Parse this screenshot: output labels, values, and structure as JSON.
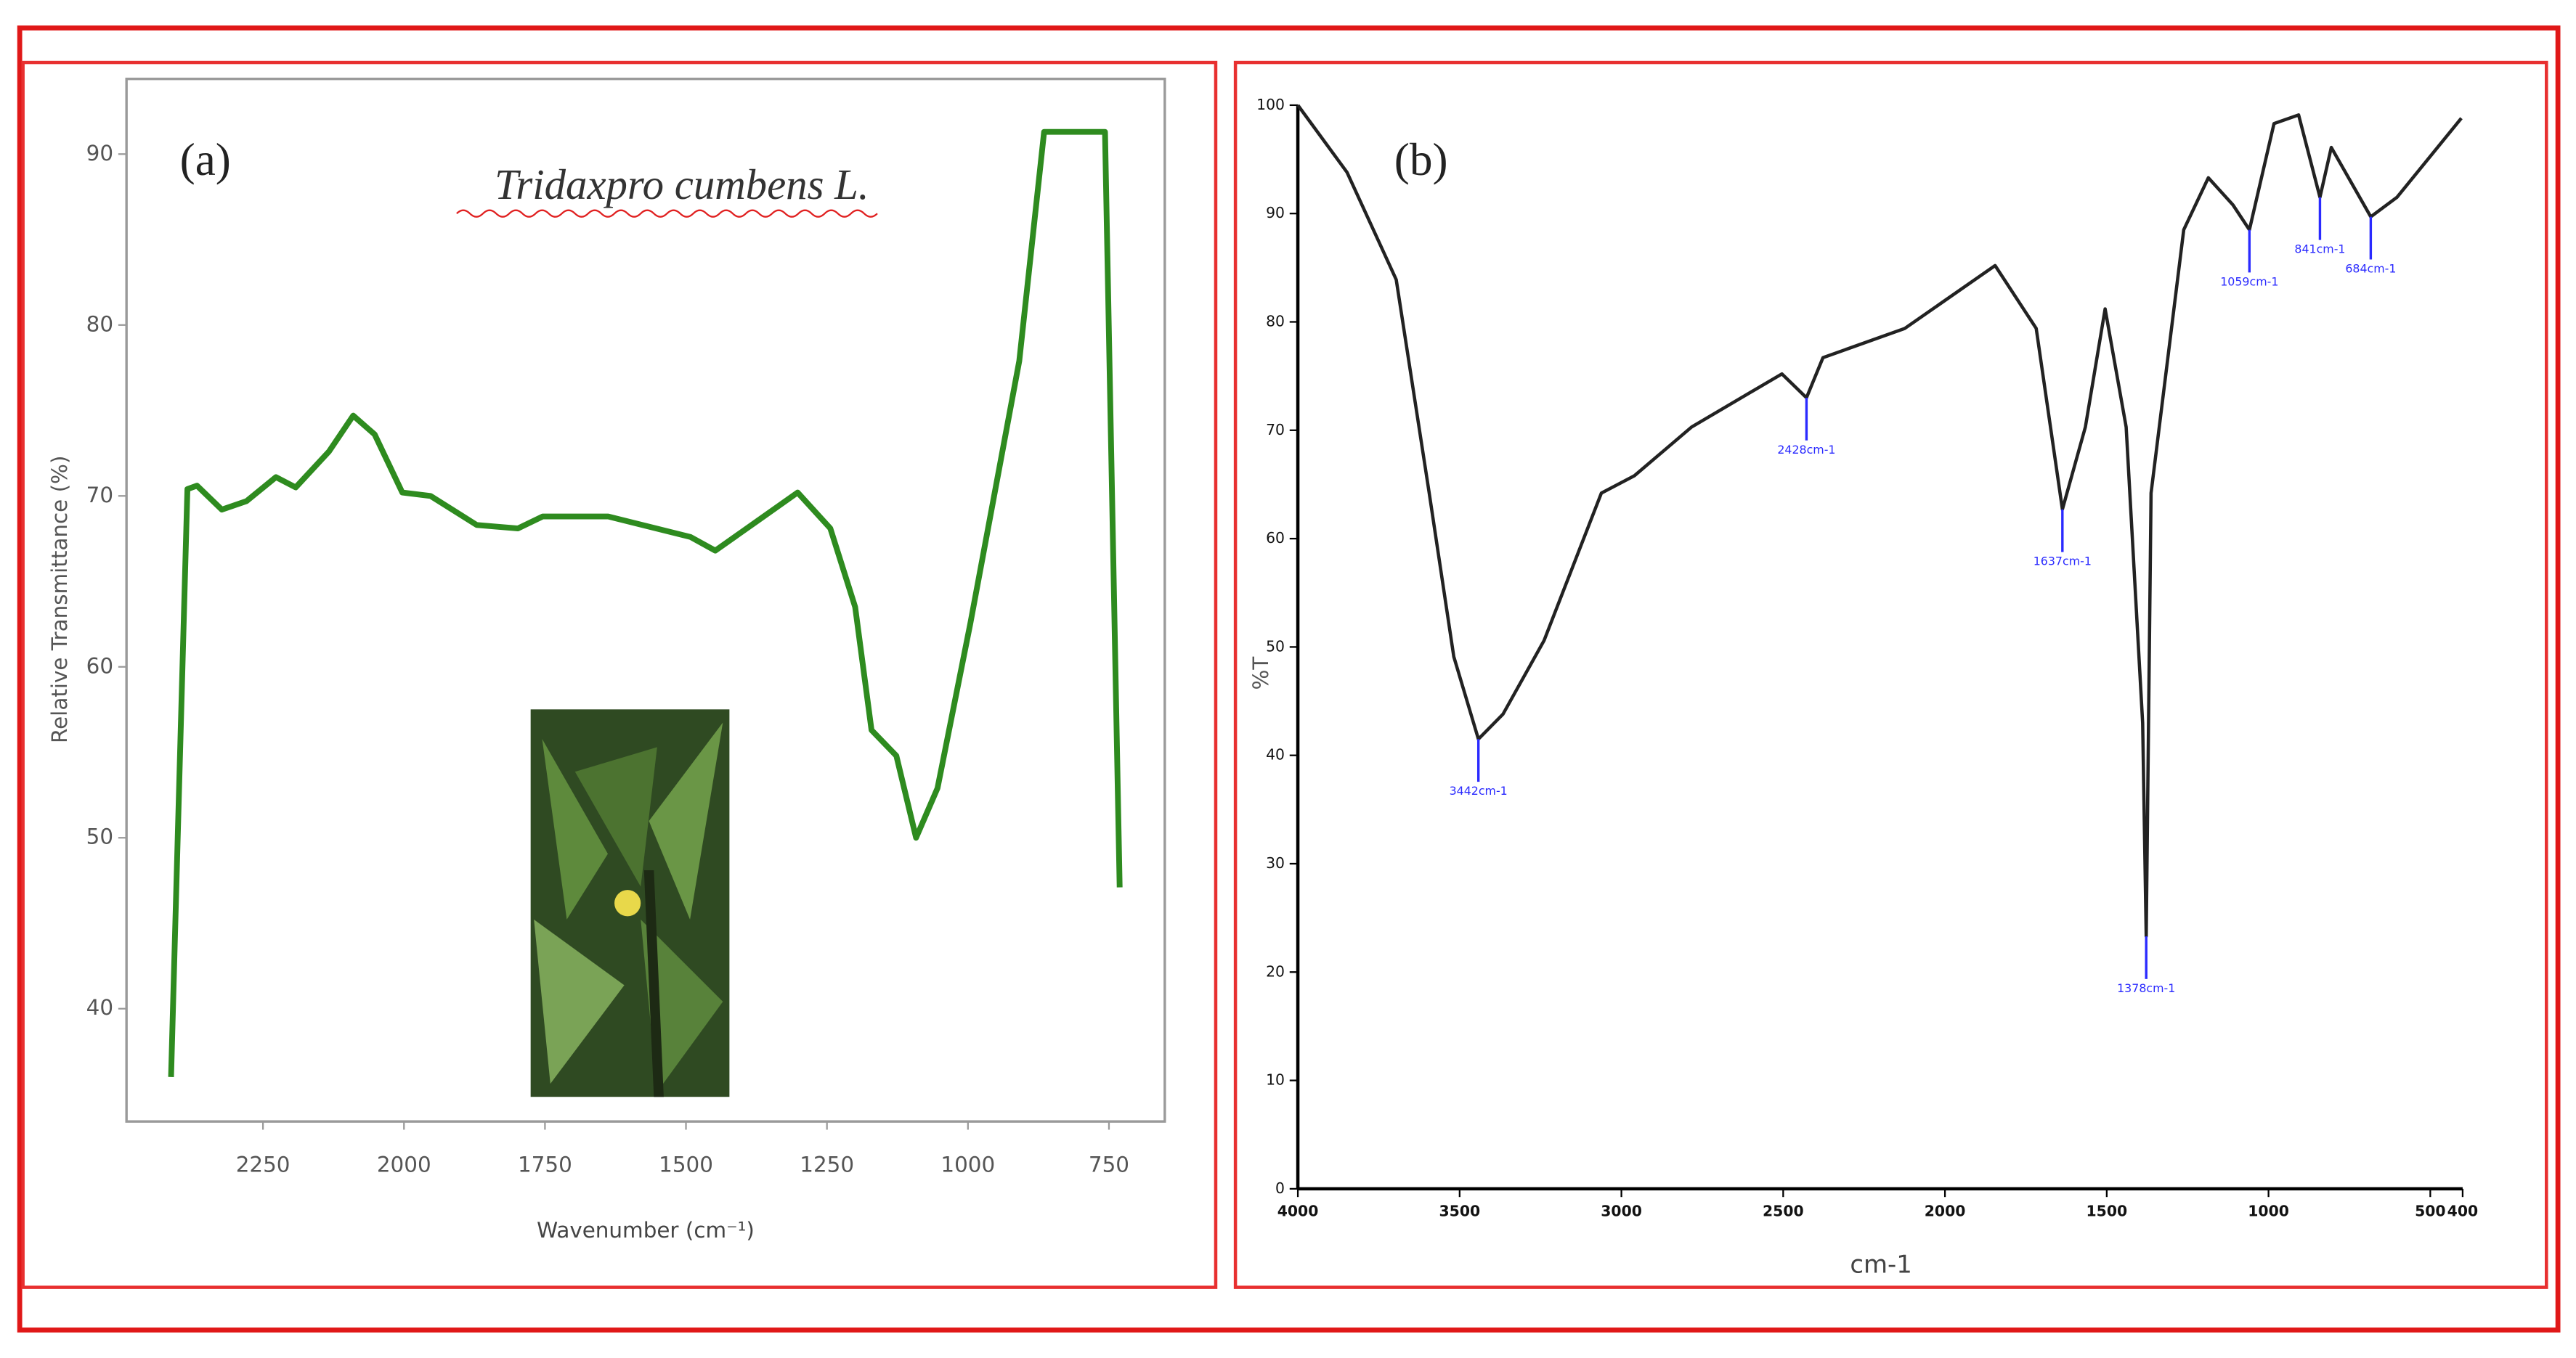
{
  "chart_data": [
    {
      "type": "line",
      "title": "(a)",
      "annotation": "Tridaxpro cumbens L.",
      "x_label": "Wavenumber (cm⁻¹)",
      "y_label": "Relative Transmittance (%)",
      "color": "#2e8b1f",
      "x": [
        2413,
        2384,
        2367,
        2323,
        2279,
        2227,
        2192,
        2133,
        2090,
        2052,
        2003,
        1953,
        1871,
        1798,
        1754,
        1638,
        1492,
        1448,
        1375,
        1302,
        1244,
        1200,
        1171,
        1127,
        1092,
        1054,
        996,
        909,
        865,
        757,
        731
      ],
      "values": [
        36,
        70.4,
        70.6,
        69.2,
        69.7,
        71.1,
        70.5,
        72.6,
        74.7,
        73.6,
        70.2,
        70,
        68.3,
        68.1,
        68.8,
        68.8,
        67.6,
        66.8,
        68.5,
        70.2,
        68.1,
        63.5,
        56.3,
        54.8,
        50,
        52.9,
        62.5,
        77.9,
        91.3,
        91.3,
        47.1
      ],
      "xlim": [
        2492,
        651
      ],
      "ylim": [
        33.4,
        94.4
      ],
      "xticks": [
        2250,
        2000,
        1750,
        1500,
        1250,
        1000,
        750
      ],
      "yticks": [
        40,
        50,
        60,
        70,
        80,
        90
      ]
    },
    {
      "type": "line",
      "title": "(b)",
      "x_label": "cm-1",
      "y_label": "%T",
      "color": "#222222",
      "x": [
        4000,
        3848,
        3696,
        3594,
        3518,
        3442,
        3366,
        3239,
        3062,
        2960,
        2783,
        2504,
        2428,
        2377,
        2124,
        1845,
        1718,
        1637,
        1566,
        1505,
        1440,
        1389,
        1378,
        1363,
        1262,
        1186,
        1110,
        1059,
        983,
        907,
        841,
        806,
        684,
        603,
        404
      ],
      "values": [
        100,
        93.8,
        83.9,
        64.2,
        49.1,
        41.5,
        43.8,
        50.6,
        64.2,
        65.8,
        70.3,
        75.2,
        73,
        76.7,
        79.4,
        85.2,
        79.4,
        62.7,
        70.3,
        81.2,
        70.3,
        43,
        23.3,
        64.2,
        88.5,
        93.3,
        90.8,
        88.5,
        98.3,
        99.1,
        91.5,
        96.1,
        89.7,
        91.5,
        98.8
      ],
      "peaks": [
        {
          "x": 3442,
          "y": 41.5,
          "label": "3442cm-1"
        },
        {
          "x": 2428,
          "y": 73,
          "label": "2428cm-1"
        },
        {
          "x": 1637,
          "y": 62.7,
          "label": "1637cm-1"
        },
        {
          "x": 1378,
          "y": 23.3,
          "label": "1378cm-1"
        },
        {
          "x": 1059,
          "y": 88.5,
          "label": "1059cm-1"
        },
        {
          "x": 841,
          "y": 91.5,
          "label": "841cm-1"
        },
        {
          "x": 684,
          "y": 89.7,
          "label": "684cm-1"
        }
      ],
      "peak_color": "#2a2aff",
      "xlim": [
        4000,
        400
      ],
      "ylim": [
        0,
        100
      ],
      "xticks": [
        4000,
        3500,
        3000,
        2500,
        2000,
        1500,
        1000,
        500,
        400
      ],
      "yticks": [
        0,
        10,
        20,
        30,
        40,
        50,
        60,
        70,
        80,
        90,
        100
      ]
    }
  ]
}
